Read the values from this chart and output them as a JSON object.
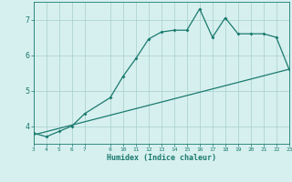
{
  "xlabel": "Humidex (Indice chaleur)",
  "x_data": [
    3,
    4,
    5,
    6,
    7,
    9,
    10,
    11,
    12,
    13,
    14,
    15,
    16,
    17,
    18,
    19,
    20,
    21,
    22,
    23
  ],
  "y_data": [
    3.8,
    3.7,
    3.85,
    4.0,
    4.35,
    4.8,
    5.4,
    5.9,
    6.45,
    6.65,
    6.7,
    6.7,
    7.3,
    6.5,
    7.05,
    6.6,
    6.6,
    6.6,
    6.5,
    5.6
  ],
  "line_x": [
    3,
    23
  ],
  "line_y": [
    3.75,
    5.6
  ],
  "line_color": "#1a7a6e",
  "dot_color": "#1a7a6e",
  "bg_color": "#d6f0ef",
  "grid_color": "#a8ceca",
  "axis_color": "#1a7a6e",
  "text_color": "#1a7a6e",
  "xlim": [
    3,
    23
  ],
  "ylim": [
    3.5,
    7.5
  ],
  "yticks": [
    4,
    5,
    6,
    7
  ],
  "xticks": [
    3,
    4,
    5,
    6,
    7,
    9,
    10,
    11,
    12,
    13,
    14,
    15,
    16,
    17,
    18,
    19,
    20,
    21,
    22,
    23
  ]
}
